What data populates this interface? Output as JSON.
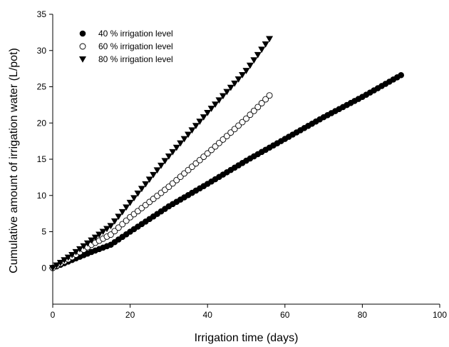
{
  "chart_data": {
    "type": "scatter",
    "title": "",
    "xlabel": "Irrigation time (days)",
    "ylabel": "Cumulative amount of irrigation water (L/pot)",
    "xlim": [
      0,
      100
    ],
    "ylim": [
      -5,
      35
    ],
    "x_ticks": [
      0,
      20,
      40,
      60,
      80,
      100
    ],
    "y_ticks": [
      0,
      5,
      10,
      15,
      20,
      25,
      30,
      35
    ],
    "grid": false,
    "legend_position": "top-left",
    "series": [
      {
        "name": "40 % irrigation level",
        "marker": "filled-circle",
        "color": "#000000",
        "x_start": 0,
        "x_end": 90,
        "x_step": 1,
        "anchors": [
          [
            0,
            0
          ],
          [
            5,
            1.1
          ],
          [
            10,
            2.2
          ],
          [
            15,
            3.2
          ],
          [
            20,
            5.0
          ],
          [
            30,
            8.5
          ],
          [
            40,
            11.6
          ],
          [
            50,
            14.8
          ],
          [
            60,
            17.8
          ],
          [
            70,
            20.8
          ],
          [
            80,
            23.6
          ],
          [
            90,
            26.6
          ]
        ]
      },
      {
        "name": "60 % irrigation level",
        "marker": "open-circle",
        "color": "#000000",
        "x_start": 0,
        "x_end": 56,
        "x_step": 1,
        "anchors": [
          [
            0,
            0
          ],
          [
            5,
            1.5
          ],
          [
            10,
            3.2
          ],
          [
            15,
            4.6
          ],
          [
            20,
            7.0
          ],
          [
            30,
            11.2
          ],
          [
            40,
            15.8
          ],
          [
            50,
            20.6
          ],
          [
            56,
            23.8
          ]
        ]
      },
      {
        "name": "80 % irrigation level",
        "marker": "filled-triangle-down",
        "color": "#000000",
        "x_start": 0,
        "x_end": 56,
        "x_step": 1,
        "anchors": [
          [
            0,
            0
          ],
          [
            5,
            1.8
          ],
          [
            10,
            3.8
          ],
          [
            15,
            5.8
          ],
          [
            20,
            9.0
          ],
          [
            30,
            15.4
          ],
          [
            40,
            21.4
          ],
          [
            50,
            27.2
          ],
          [
            56,
            31.6
          ]
        ]
      }
    ]
  }
}
